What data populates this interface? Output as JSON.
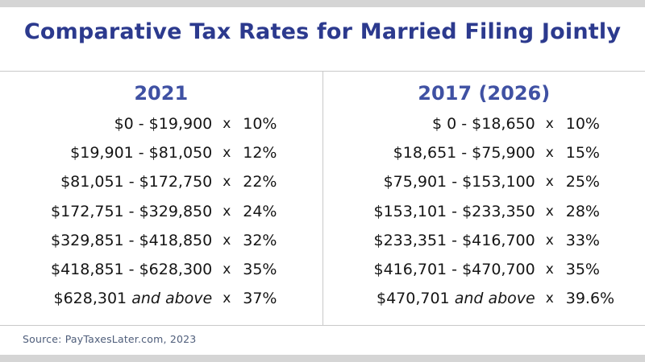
{
  "colors": {
    "title": "#2c3a8e",
    "column_header": "#3f51a3",
    "body_text": "#151515",
    "divider": "#c9c9c9",
    "frame_strip": "#d5d5d5",
    "source_text": "#4e5d7a",
    "background": "#ffffff"
  },
  "chart_data": {
    "type": "table",
    "title": "Comparative Tax Rates for Married Filing Jointly",
    "source": "Source: PayTaxesLater.com, 2023",
    "columns": [
      {
        "label": "2021",
        "rows": [
          {
            "range": "$0 - $19,900",
            "multiplier": "x",
            "rate": "10%"
          },
          {
            "range": "$19,901 - $81,050",
            "multiplier": "x",
            "rate": "12%"
          },
          {
            "range": "$81,051 - $172,750",
            "multiplier": "x",
            "rate": "22%"
          },
          {
            "range": "$172,751 - $329,850",
            "multiplier": "x",
            "rate": "24%"
          },
          {
            "range": "$329,851 - $418,850",
            "multiplier": "x",
            "rate": "32%"
          },
          {
            "range": "$418,851 - $628,300",
            "multiplier": "x",
            "rate": "35%"
          },
          {
            "range": "$628,301",
            "range_italic": "and above",
            "multiplier": "x",
            "rate": "37%"
          }
        ]
      },
      {
        "label": "2017 (2026)",
        "rows": [
          {
            "range": "$ 0 - $18,650",
            "multiplier": "x",
            "rate": "10%"
          },
          {
            "range": "$18,651 - $75,900",
            "multiplier": "x",
            "rate": "15%"
          },
          {
            "range": "$75,901 - $153,100",
            "multiplier": "x",
            "rate": "25%"
          },
          {
            "range": "$153,101 - $233,350",
            "multiplier": "x",
            "rate": "28%"
          },
          {
            "range": "$233,351 - $416,700",
            "multiplier": "x",
            "rate": "33%"
          },
          {
            "range": "$416,701 - $470,700",
            "multiplier": "x",
            "rate": "35%"
          },
          {
            "range": "$470,701",
            "range_italic": "and above",
            "multiplier": "x",
            "rate": "39.6%"
          }
        ]
      }
    ]
  }
}
